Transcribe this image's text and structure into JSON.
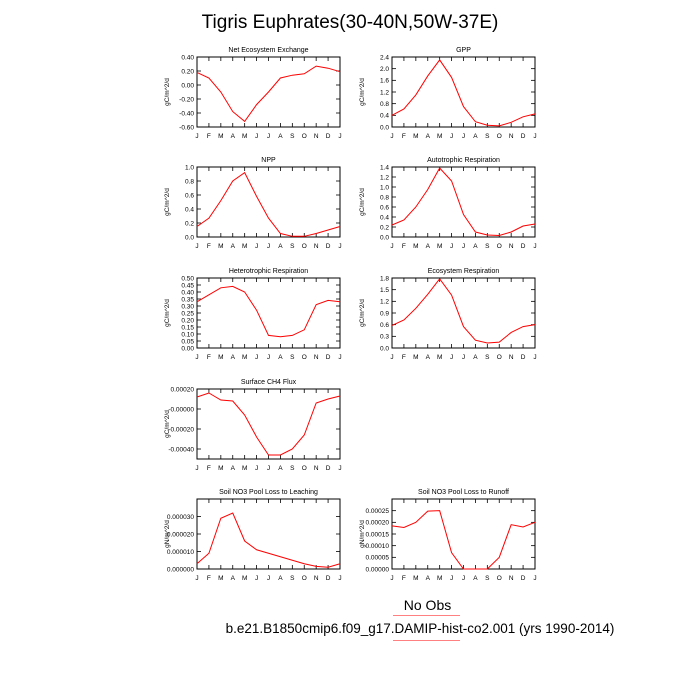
{
  "page": {
    "title": "Tigris Euphrates(30-40N,50W-37E)",
    "legend_label": "No Obs",
    "case_label": "b.e21.B1850cmip6.f09_g17.DAMIP-hist-co2.001 (yrs 1990-2014)",
    "line_color": "#ff0000",
    "underline_color": "#ff8080"
  },
  "chart_data": [
    {
      "type": "line",
      "title": "Net Ecosystem Exchange",
      "ylabel": "gC/m^2/d",
      "ylim": [
        -0.6,
        0.4
      ],
      "yticks": [
        -0.6,
        -0.4,
        -0.2,
        0.0,
        0.2,
        0.4
      ],
      "ytick_labels": [
        "-0.60",
        "-0.40",
        "-0.20",
        "0.00",
        "0.20",
        "0.40"
      ],
      "x_labels": [
        "J",
        "F",
        "M",
        "A",
        "M",
        "J",
        "J",
        "A",
        "S",
        "O",
        "N",
        "D",
        "J"
      ],
      "series": [
        {
          "values": [
            0.18,
            0.1,
            -0.1,
            -0.38,
            -0.52,
            -0.28,
            -0.1,
            0.1,
            0.14,
            0.16,
            0.27,
            0.24,
            0.19
          ]
        }
      ]
    },
    {
      "type": "line",
      "title": "GPP",
      "ylabel": "gC/m^2/d",
      "ylim": [
        0.0,
        2.4
      ],
      "yticks": [
        0.0,
        0.4,
        0.8,
        1.2,
        1.6,
        2.0,
        2.4
      ],
      "ytick_labels": [
        "0.0",
        "0.4",
        "0.8",
        "1.2",
        "1.6",
        "2.0",
        "2.4"
      ],
      "x_labels": [
        "J",
        "F",
        "M",
        "A",
        "M",
        "J",
        "J",
        "A",
        "S",
        "O",
        "N",
        "D",
        "J"
      ],
      "series": [
        {
          "values": [
            0.4,
            0.62,
            1.1,
            1.75,
            2.3,
            1.7,
            0.7,
            0.18,
            0.06,
            0.04,
            0.16,
            0.35,
            0.45
          ]
        }
      ]
    },
    {
      "type": "line",
      "title": "NPP",
      "ylabel": "gC/m^2/d",
      "ylim": [
        0.0,
        1.0
      ],
      "yticks": [
        0.0,
        0.2,
        0.4,
        0.6,
        0.8,
        1.0
      ],
      "ytick_labels": [
        "0.0",
        "0.2",
        "0.4",
        "0.6",
        "0.8",
        "1.0"
      ],
      "x_labels": [
        "J",
        "F",
        "M",
        "A",
        "M",
        "J",
        "J",
        "A",
        "S",
        "O",
        "N",
        "D",
        "J"
      ],
      "series": [
        {
          "values": [
            0.15,
            0.27,
            0.52,
            0.8,
            0.92,
            0.58,
            0.27,
            0.05,
            0.01,
            0.01,
            0.05,
            0.1,
            0.15
          ]
        }
      ]
    },
    {
      "type": "line",
      "title": "Autotrophic Respiration",
      "ylabel": "gC/m^2/d",
      "ylim": [
        0.0,
        1.4
      ],
      "yticks": [
        0.0,
        0.2,
        0.4,
        0.6,
        0.8,
        1.0,
        1.2,
        1.4
      ],
      "ytick_labels": [
        "0.0",
        "0.2",
        "0.4",
        "0.6",
        "0.8",
        "1.0",
        "1.2",
        "1.4"
      ],
      "x_labels": [
        "J",
        "F",
        "M",
        "A",
        "M",
        "J",
        "J",
        "A",
        "S",
        "O",
        "N",
        "D",
        "J"
      ],
      "series": [
        {
          "values": [
            0.24,
            0.34,
            0.6,
            0.95,
            1.38,
            1.12,
            0.45,
            0.1,
            0.04,
            0.03,
            0.1,
            0.22,
            0.26
          ]
        }
      ]
    },
    {
      "type": "line",
      "title": "Heterotrophic Respiration",
      "ylabel": "gC/m^2/d",
      "ylim": [
        0.0,
        0.5
      ],
      "yticks": [
        0.0,
        0.05,
        0.1,
        0.15,
        0.2,
        0.25,
        0.3,
        0.35,
        0.4,
        0.45,
        0.5
      ],
      "ytick_labels": [
        "0.00",
        "0.05",
        "0.10",
        "0.15",
        "0.20",
        "0.25",
        "0.30",
        "0.35",
        "0.40",
        "0.45",
        "0.50"
      ],
      "x_labels": [
        "J",
        "F",
        "M",
        "A",
        "M",
        "J",
        "J",
        "A",
        "S",
        "O",
        "N",
        "D",
        "J"
      ],
      "series": [
        {
          "values": [
            0.33,
            0.38,
            0.43,
            0.44,
            0.4,
            0.27,
            0.09,
            0.08,
            0.09,
            0.13,
            0.31,
            0.34,
            0.33
          ]
        }
      ]
    },
    {
      "type": "line",
      "title": "Ecosystem Respiration",
      "ylabel": "gC/m^2/d",
      "ylim": [
        0.0,
        1.8
      ],
      "yticks": [
        0.0,
        0.3,
        0.6,
        0.9,
        1.2,
        1.5,
        1.8
      ],
      "ytick_labels": [
        "0.0",
        "0.3",
        "0.6",
        "0.9",
        "1.2",
        "1.5",
        "1.8"
      ],
      "x_labels": [
        "J",
        "F",
        "M",
        "A",
        "M",
        "J",
        "J",
        "A",
        "S",
        "O",
        "N",
        "D",
        "J"
      ],
      "series": [
        {
          "values": [
            0.58,
            0.72,
            1.02,
            1.38,
            1.78,
            1.36,
            0.55,
            0.2,
            0.13,
            0.15,
            0.4,
            0.55,
            0.6
          ]
        }
      ]
    },
    {
      "type": "line",
      "title": "Surface CH4 Flux",
      "ylabel": "gC/m^2/d",
      "ylim": [
        -0.0005,
        0.0002
      ],
      "yticks": [
        -0.0004,
        -0.0002,
        0.0,
        0.0002
      ],
      "ytick_labels": [
        "-0.00040",
        "-0.00020",
        "-0.00000",
        "0.00020"
      ],
      "x_labels": [
        "J",
        "F",
        "M",
        "A",
        "M",
        "J",
        "J",
        "A",
        "S",
        "O",
        "N",
        "D",
        "J"
      ],
      "series": [
        {
          "values": [
            0.00012,
            0.00016,
            9e-05,
            8e-05,
            -6e-05,
            -0.00028,
            -0.00046,
            -0.00046,
            -0.0004,
            -0.00026,
            6e-05,
            0.0001,
            0.00013
          ]
        }
      ]
    },
    {
      "type": "line",
      "title": "Soil NO3 Pool Loss to Leaching",
      "ylabel": "gN/m^2/d",
      "ylim": [
        0.0,
        4e-05
      ],
      "yticks": [
        0.0,
        1e-05,
        2e-05,
        3e-05
      ],
      "ytick_labels": [
        "0.000000",
        "0.000010",
        "0.000020",
        "0.000030"
      ],
      "x_labels": [
        "J",
        "F",
        "M",
        "A",
        "M",
        "J",
        "J",
        "A",
        "S",
        "O",
        "N",
        "D",
        "J"
      ],
      "series": [
        {
          "values": [
            3e-06,
            9e-06,
            2.9e-05,
            3.2e-05,
            1.6e-05,
            1.1e-05,
            9e-06,
            7e-06,
            5e-06,
            3e-06,
            1.5e-06,
            1e-06,
            3e-06
          ]
        }
      ]
    },
    {
      "type": "line",
      "title": "Soil NO3 Pool Loss to Runoff",
      "ylabel": "gN/m^2/d",
      "ylim": [
        0.0,
        0.0003
      ],
      "yticks": [
        0.0,
        5e-05,
        0.0001,
        0.00015,
        0.0002,
        0.00025
      ],
      "ytick_labels": [
        "0.00000",
        "0.00005",
        "0.00010",
        "0.00015",
        "0.00020",
        "0.00025"
      ],
      "x_labels": [
        "J",
        "F",
        "M",
        "A",
        "M",
        "J",
        "J",
        "A",
        "S",
        "O",
        "N",
        "D",
        "J"
      ],
      "series": [
        {
          "values": [
            0.000185,
            0.000178,
            0.0002,
            0.000248,
            0.00025,
            7e-05,
            0.0,
            0.0,
            0.0,
            5e-05,
            0.00019,
            0.00018,
            0.0002
          ]
        }
      ]
    }
  ]
}
